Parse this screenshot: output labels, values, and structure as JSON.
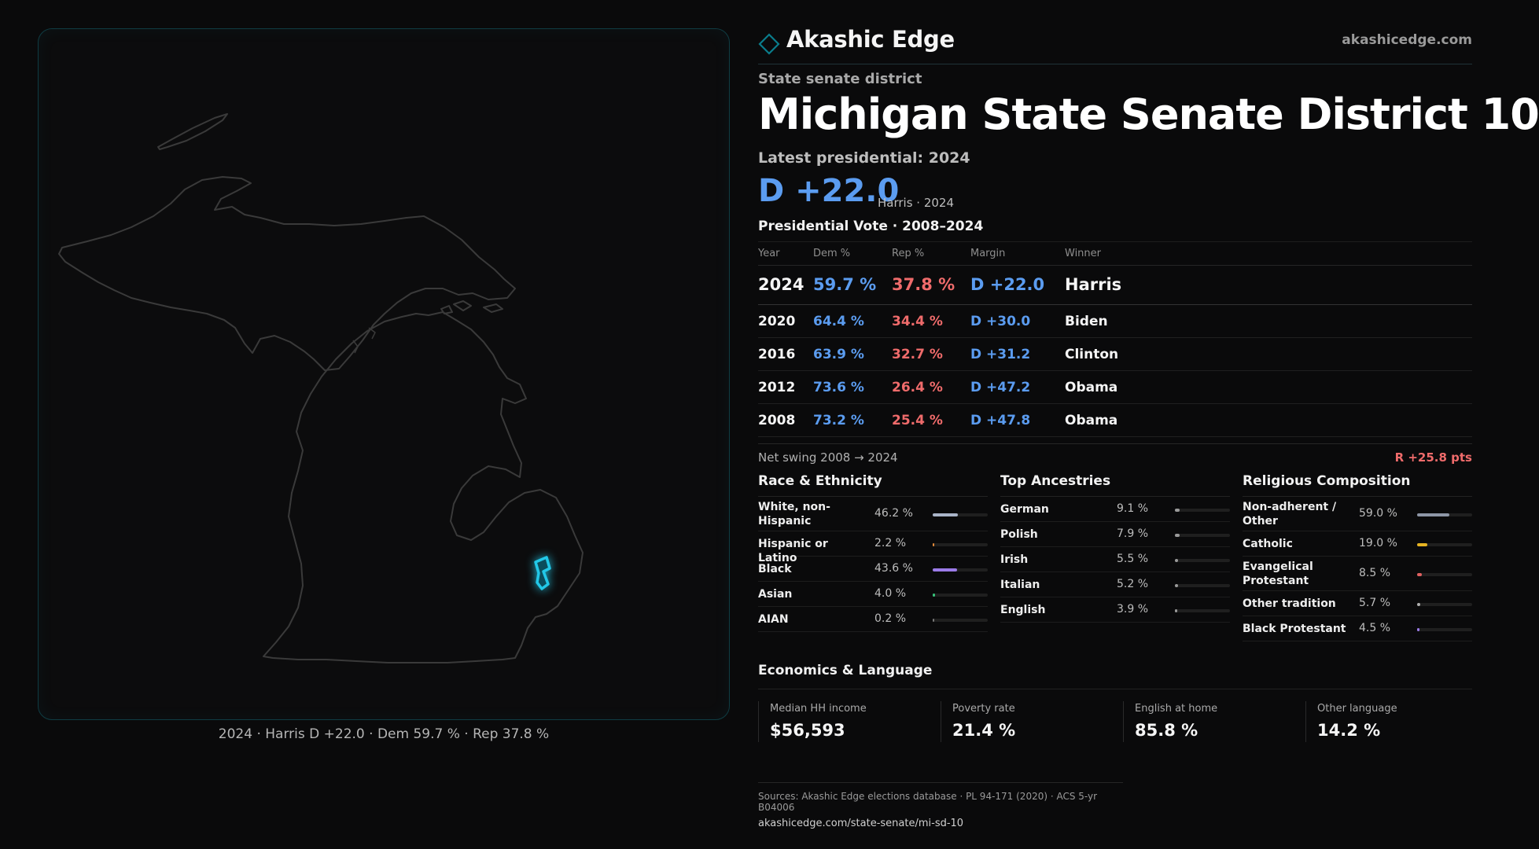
{
  "brand": {
    "name": "Akashic Edge",
    "url": "akashicedge.com",
    "logo_icon": "diamond-outline-icon",
    "accent": "#0a7d8c"
  },
  "district": {
    "kind": "State senate district",
    "title": "Michigan State Senate District 10",
    "latest_label": "Latest presidential: 2024",
    "headline_margin": "D +22.0",
    "headline_sub": "Harris · 2024"
  },
  "map": {
    "caption": "2024 · Harris D +22.0 · Dem 59.7 % · Rep 37.8 %",
    "highlight_color": "#21c6e6",
    "outline_color": "#3b3b3b"
  },
  "presidential": {
    "heading": "Presidential Vote · 2008–2024",
    "columns": [
      "Year",
      "Dem %",
      "Rep %",
      "Margin",
      "Winner"
    ],
    "rows": [
      {
        "year": "2024",
        "dem": "59.7 %",
        "rep": "37.8 %",
        "margin": "D +22.0",
        "winner": "Harris"
      },
      {
        "year": "2020",
        "dem": "64.4 %",
        "rep": "34.4 %",
        "margin": "D +30.0",
        "winner": "Biden"
      },
      {
        "year": "2016",
        "dem": "63.9 %",
        "rep": "32.7 %",
        "margin": "D +31.2",
        "winner": "Clinton"
      },
      {
        "year": "2012",
        "dem": "73.6 %",
        "rep": "26.4 %",
        "margin": "D +47.2",
        "winner": "Obama"
      },
      {
        "year": "2008",
        "dem": "73.2 %",
        "rep": "25.4 %",
        "margin": "D +47.8",
        "winner": "Obama"
      }
    ],
    "swing_label": "Net swing 2008 → 2024",
    "swing_value": "R +25.8 pts",
    "dem_color": "#5b9cf0",
    "rep_color": "#ef6b6b"
  },
  "race": {
    "heading": "Race & Ethnicity",
    "items": [
      {
        "label": "White, non-Hispanic",
        "value": "46.2 %",
        "pct": 46.2,
        "color": "#a9b4c8"
      },
      {
        "label": "Hispanic or Latino",
        "value": "2.2 %",
        "pct": 2.2,
        "color": "#e58b3a"
      },
      {
        "label": "Black",
        "value": "43.6 %",
        "pct": 43.6,
        "color": "#9b7be8"
      },
      {
        "label": "Asian",
        "value": "4.0 %",
        "pct": 4.0,
        "color": "#37c27a"
      },
      {
        "label": "AIAN",
        "value": "0.2 %",
        "pct": 0.2,
        "color": "#777777"
      }
    ]
  },
  "ancestry": {
    "heading": "Top Ancestries",
    "items": [
      {
        "label": "German",
        "value": "9.1 %",
        "pct": 9.1,
        "color": "#9a9a9a"
      },
      {
        "label": "Polish",
        "value": "7.9 %",
        "pct": 7.9,
        "color": "#9a9a9a"
      },
      {
        "label": "Irish",
        "value": "5.5 %",
        "pct": 5.5,
        "color": "#9a9a9a"
      },
      {
        "label": "Italian",
        "value": "5.2 %",
        "pct": 5.2,
        "color": "#9a9a9a"
      },
      {
        "label": "English",
        "value": "3.9 %",
        "pct": 3.9,
        "color": "#9a9a9a"
      }
    ]
  },
  "religion": {
    "heading": "Religious Composition",
    "items": [
      {
        "label": "Non-adherent / Other",
        "value": "59.0 %",
        "pct": 59.0,
        "color": "#8d96a6"
      },
      {
        "label": "Catholic",
        "value": "19.0 %",
        "pct": 19.0,
        "color": "#e6b422"
      },
      {
        "label": "Evangelical Protestant",
        "value": "8.5 %",
        "pct": 8.5,
        "color": "#e06060"
      },
      {
        "label": "Other tradition",
        "value": "5.7 %",
        "pct": 5.7,
        "color": "#b0b0b0"
      },
      {
        "label": "Black Protestant",
        "value": "4.5 %",
        "pct": 4.5,
        "color": "#9b7be8"
      }
    ]
  },
  "economics": {
    "heading": "Economics & Language",
    "cards": [
      {
        "label": "Median HH income",
        "value": "$56,593"
      },
      {
        "label": "Poverty rate",
        "value": "21.4 %"
      },
      {
        "label": "English at home",
        "value": "85.8 %"
      },
      {
        "label": "Other language",
        "value": "14.2 %"
      }
    ]
  },
  "sources": {
    "text": "Sources: Akashic Edge elections database · PL 94-171 (2020) · ACS 5-yr B04006",
    "url": "akashicedge.com/state-senate/mi-sd-10"
  }
}
